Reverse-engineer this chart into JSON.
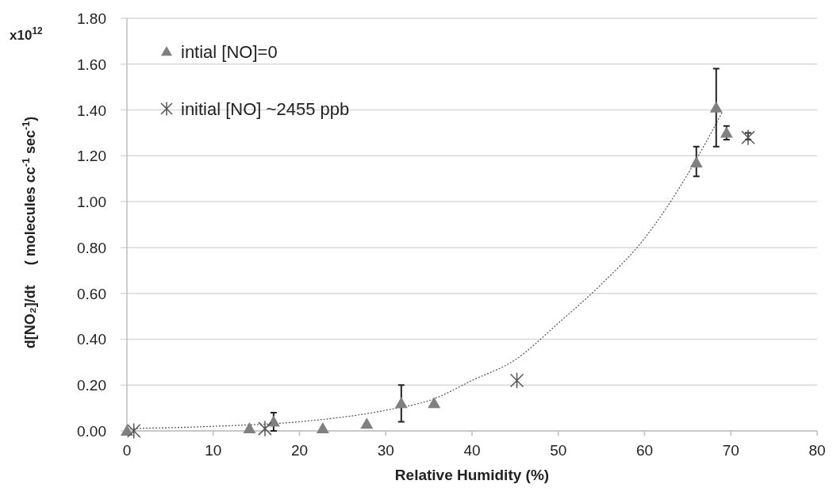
{
  "chart_data": {
    "type": "scatter",
    "xlabel": "Relative Humidity (%)",
    "ylabel": "d[NO₂]/dt     ( molecules cc$^{-1}$ sec$^{-1}$)",
    "annotations": [
      "x10$^{12}$"
    ],
    "xlim": [
      0,
      80
    ],
    "xticks": [
      0,
      10,
      20,
      30,
      40,
      50,
      60,
      70,
      80
    ],
    "ylim": [
      0,
      1.8
    ],
    "yticks": [
      {
        "value": 0,
        "label": "0.00"
      },
      {
        "value": 0.2,
        "label": "0.20"
      },
      {
        "value": 0.4,
        "label": "0.40"
      },
      {
        "value": 0.6,
        "label": "0.60"
      },
      {
        "value": 0.8,
        "label": "0.80"
      },
      {
        "value": 1.0,
        "label": "1.00"
      },
      {
        "value": 1.2,
        "label": "1.20"
      },
      {
        "value": 1.4,
        "label": "1.40"
      },
      {
        "value": 1.6,
        "label": "1.60"
      },
      {
        "value": 1.8,
        "label": "1.80"
      }
    ],
    "grid": "y",
    "legend": "top left",
    "series": [
      {
        "type": "line",
        "color": "#555555",
        "line_style": "dotted",
        "marker": "none",
        "x": [
          0,
          10,
          20,
          30,
          35.6,
          40,
          45,
          50,
          55,
          60,
          65,
          69
        ],
        "values": [
          0.01,
          0.02,
          0.04,
          0.09,
          0.14,
          0.22,
          0.31,
          0.47,
          0.64,
          0.84,
          1.12,
          1.39
        ]
      },
      {
        "name": "intial [NO]=0",
        "marker": "triangle",
        "color": "#808080",
        "x": [
          0,
          14.2,
          17,
          22.7,
          27.8,
          31.8,
          35.6,
          66,
          68.3,
          69.5
        ],
        "values": [
          0,
          0.01,
          0.04,
          0.01,
          0.03,
          0.12,
          0.12,
          1.17,
          1.41,
          1.3
        ],
        "errors": [
          null,
          null,
          [
            0,
            0.08
          ],
          null,
          null,
          [
            0.04,
            0.2
          ],
          null,
          [
            1.11,
            1.24
          ],
          [
            1.24,
            1.58
          ],
          [
            1.27,
            1.33
          ]
        ]
      },
      {
        "name": "initial [NO] ~2455 ppb",
        "marker": "cross",
        "color": "#555555",
        "x": [
          0.8,
          16,
          45.2,
          72
        ],
        "values": [
          0,
          0.01,
          0.22,
          1.28
        ],
        "errors": [
          null,
          null,
          null,
          [
            1.27,
            1.3
          ]
        ]
      }
    ]
  }
}
